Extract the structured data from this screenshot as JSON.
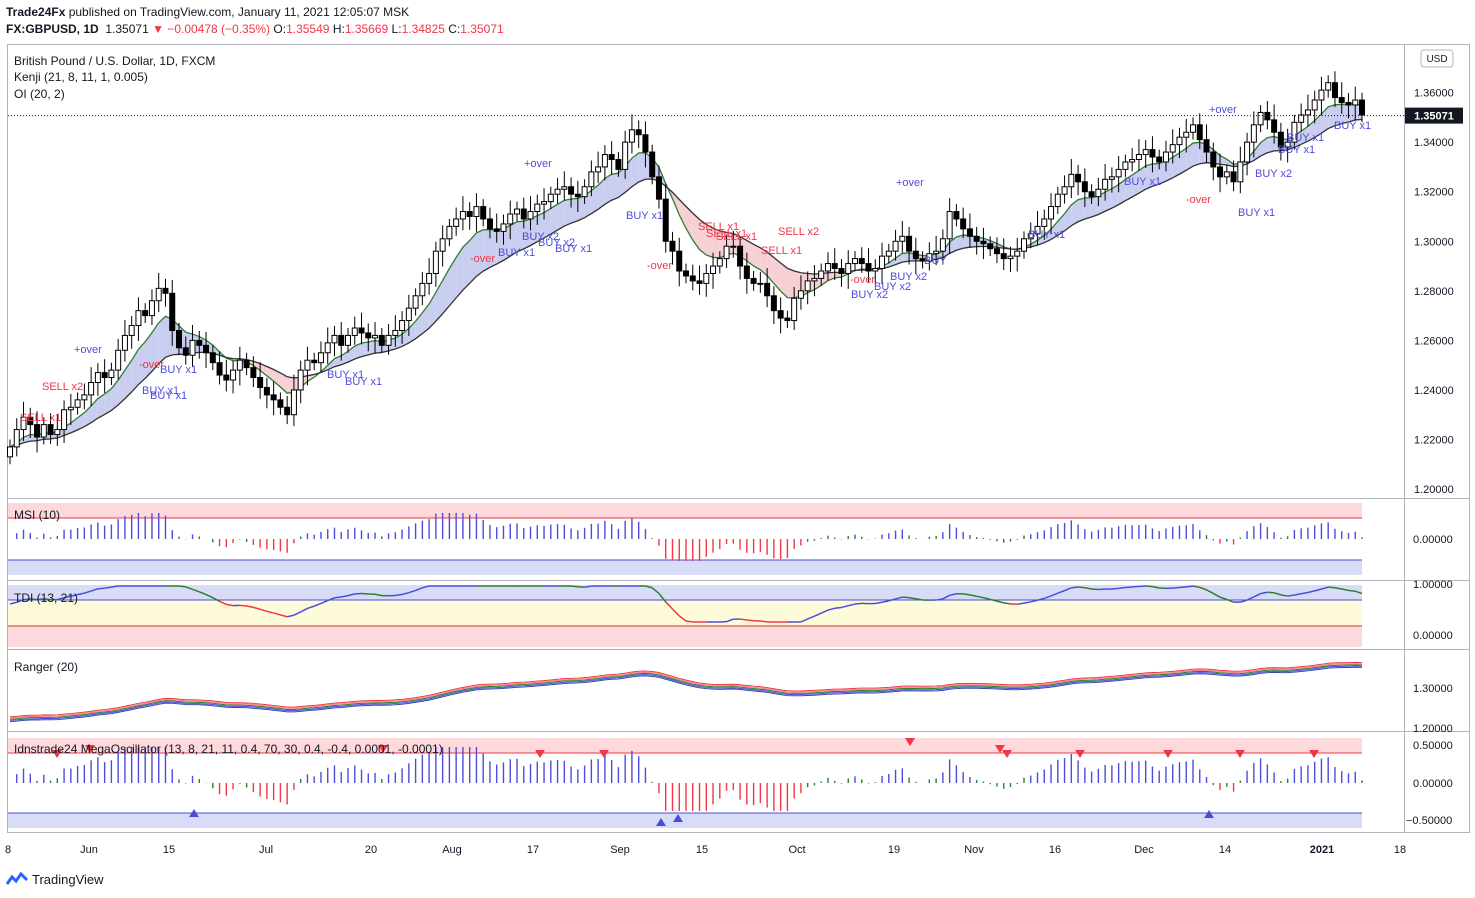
{
  "header": {
    "publisher": "Trade24Fx",
    "published_line": " published on TradingView.com, January 11, 2021 12:05:07 MSK",
    "symbol": "FX:GBPUSD, 1D",
    "last": "1.35071",
    "change": "▼ −0.00478 (−0.35%)",
    "o_label": "O:",
    "o": "1.35549",
    "h_label": "H:",
    "h": "1.35669",
    "l_label": "L:",
    "l": "1.34825",
    "c_label": "C:",
    "c": "1.35071"
  },
  "legend": {
    "title": "British Pound / U.S. Dollar, 1D, FXCM",
    "kenji": "Kenji (21, 8, 11, 1, 0.005)",
    "oi": "OI (20, 2)",
    "msi": "MSI (10)",
    "tdi": "TDI (13, 21)",
    "ranger": "Ranger (20)",
    "mega": "Idnstrade24 MegaOscillator (13, 8, 21, 11, 0.4, 70, 30, 0.4, -0.4, 0.0001, -0.0001)"
  },
  "currency_badge": "USD",
  "last_price_label": "1.35071",
  "brand": "TradingView",
  "colors": {
    "up": "#ffffff",
    "down": "#000000",
    "signal_buy": "#4c4cdc",
    "signal_sell": "#f23645",
    "cloud": "#c9cdf0",
    "red_zone": "#fdd9dc",
    "blue_zone": "#d9dcf7",
    "yellow_zone": "#fdfbd9"
  },
  "chart_data": {
    "type": "candlestick",
    "x_ticks": [
      "8",
      "Jun",
      "15",
      "Jul",
      "20",
      "Aug",
      "17",
      "Sep",
      "15",
      "Oct",
      "19",
      "Nov",
      "16",
      "Dec",
      "14",
      "2021",
      "18"
    ],
    "price_axis": [
      "1.36000",
      "1.34000",
      "1.32000",
      "1.30000",
      "1.28000",
      "1.26000",
      "1.24000",
      "1.22000",
      "1.20000"
    ],
    "ylim": [
      1.198,
      1.378
    ],
    "last_price": 1.35071,
    "closes": [
      1.217,
      1.224,
      1.229,
      1.226,
      1.221,
      1.226,
      1.222,
      1.224,
      1.232,
      1.233,
      1.236,
      1.238,
      1.243,
      1.247,
      1.245,
      1.248,
      1.256,
      1.262,
      1.266,
      1.272,
      1.27,
      1.276,
      1.281,
      1.279,
      1.264,
      1.257,
      1.254,
      1.26,
      1.258,
      1.255,
      1.251,
      1.246,
      1.244,
      1.248,
      1.252,
      1.249,
      1.245,
      1.241,
      1.238,
      1.236,
      1.233,
      1.23,
      1.24,
      1.248,
      1.252,
      1.251,
      1.255,
      1.259,
      1.262,
      1.258,
      1.262,
      1.265,
      1.263,
      1.261,
      1.262,
      1.258,
      1.262,
      1.264,
      1.268,
      1.273,
      1.278,
      1.283,
      1.287,
      1.296,
      1.301,
      1.306,
      1.309,
      1.312,
      1.31,
      1.314,
      1.309,
      1.305,
      1.304,
      1.307,
      1.311,
      1.313,
      1.309,
      1.312,
      1.315,
      1.316,
      1.319,
      1.321,
      1.322,
      1.319,
      1.318,
      1.322,
      1.328,
      1.33,
      1.335,
      1.333,
      1.329,
      1.34,
      1.345,
      1.343,
      1.336,
      1.326,
      1.317,
      1.3,
      1.296,
      1.288,
      1.286,
      1.284,
      1.283,
      1.287,
      1.29,
      1.293,
      1.298,
      1.298,
      1.29,
      1.285,
      1.283,
      1.283,
      1.278,
      1.272,
      1.269,
      1.268,
      1.277,
      1.28,
      1.284,
      1.285,
      1.288,
      1.291,
      1.289,
      1.287,
      1.291,
      1.293,
      1.291,
      1.288,
      1.289,
      1.294,
      1.296,
      1.3,
      1.302,
      1.296,
      1.293,
      1.292,
      1.295,
      1.296,
      1.301,
      1.312,
      1.309,
      1.305,
      1.302,
      1.3,
      1.299,
      1.297,
      1.295,
      1.293,
      1.294,
      1.296,
      1.301,
      1.303,
      1.306,
      1.309,
      1.314,
      1.319,
      1.322,
      1.327,
      1.324,
      1.32,
      1.318,
      1.321,
      1.325,
      1.326,
      1.329,
      1.332,
      1.333,
      1.335,
      1.337,
      1.334,
      1.332,
      1.336,
      1.339,
      1.342,
      1.344,
      1.347,
      1.341,
      1.336,
      1.33,
      1.326,
      1.328,
      1.324,
      1.332,
      1.34,
      1.347,
      1.352,
      1.349,
      1.344,
      1.338,
      1.34,
      1.348,
      1.351,
      1.353,
      1.357,
      1.361,
      1.364,
      1.358,
      1.356,
      1.355,
      1.357,
      1.351
    ]
  }
}
